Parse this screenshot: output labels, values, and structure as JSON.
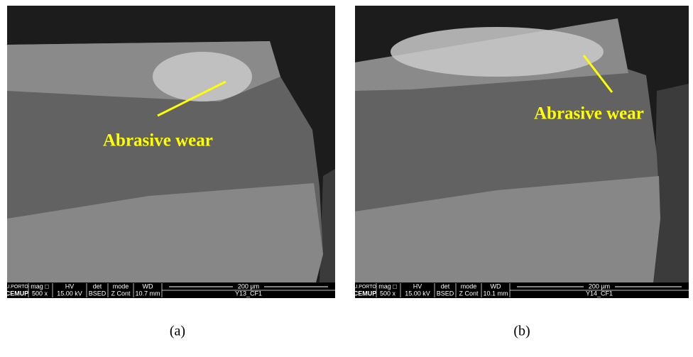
{
  "panels": [
    {
      "label": "(a)",
      "annotation": "Abrasive wear",
      "info_bar": {
        "logo": "U.PORTO",
        "institution": "CEMUP",
        "headers": [
          "mag □",
          "HV",
          "det",
          "mode",
          "WD"
        ],
        "values": [
          "500 x",
          "15.00 kV",
          "BSED",
          "Z Cont",
          "10.7 mm"
        ],
        "scale_bar": "200 µm",
        "sample": "Y13_CF1"
      }
    },
    {
      "label": "(b)",
      "annotation": "Abrasive wear",
      "info_bar": {
        "logo": "U.PORTO",
        "institution": "CEMUP",
        "headers": [
          "mag □",
          "HV",
          "det",
          "mode",
          "WD"
        ],
        "values": [
          "500 x",
          "15.00 kV",
          "BSED",
          "Z Cont",
          "10.1 mm"
        ],
        "scale_bar": "200 µm",
        "sample": "Y14_CF1"
      }
    }
  ]
}
